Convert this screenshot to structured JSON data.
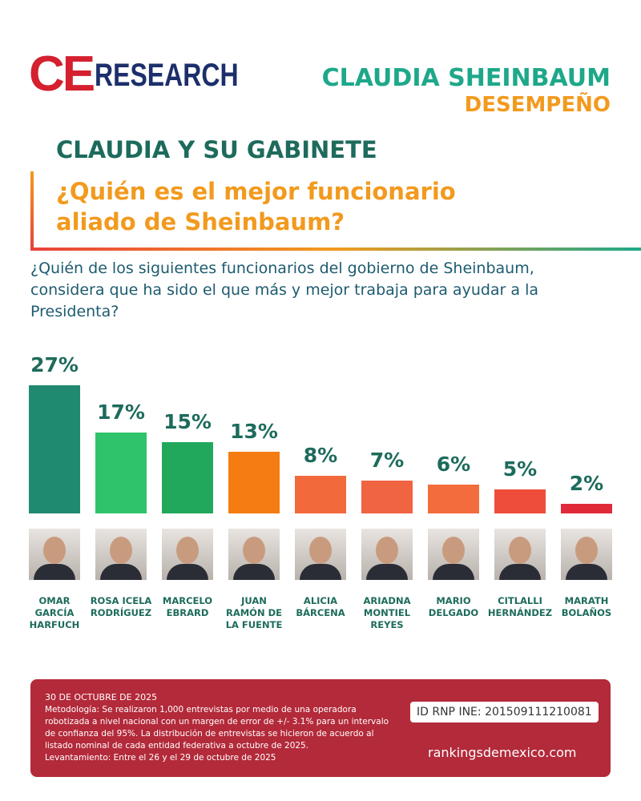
{
  "header": {
    "logo_ce": "CE",
    "logo_research": "RESEARCH",
    "title": "CLAUDIA SHEINBAUM",
    "subtitle": "DESEMPEÑO"
  },
  "section_title": "CLAUDIA Y SU GABINETE",
  "headline": "¿Quién es el mejor funcionario aliado de Sheinbaum?",
  "question": "¿Quién de los siguientes funcionarios del gobierno de Sheinbaum, considera que ha sido el que más y mejor trabaja para ayudar a la Presidenta?",
  "chart_data": {
    "type": "bar",
    "categories": [
      "OMAR GARCÍA HARFUCH",
      "ROSA ICELA RODRÍGUEZ",
      "MARCELO EBRARD",
      "JUAN RAMÓN DE LA FUENTE",
      "ALICIA BÁRCENA",
      "ARIADNA MONTIEL REYES",
      "MARIO DELGADO",
      "CITLALLI HERNÁNDEZ",
      "MARATH BOLAÑOS"
    ],
    "values": [
      27,
      17,
      15,
      13,
      8,
      7,
      6,
      5,
      2
    ],
    "value_labels": [
      "27%",
      "17%",
      "15%",
      "13%",
      "8%",
      "7%",
      "6%",
      "5%",
      "2%"
    ],
    "colors": [
      "#1f8a70",
      "#2fc46b",
      "#22a85c",
      "#f57c12",
      "#f26a3c",
      "#f06441",
      "#f26c3e",
      "#ee4d3b",
      "#e02a3a"
    ]
  },
  "footer": {
    "date": "30 DE OCTUBRE DE 2025",
    "methodology": "Metodología: Se realizaron 1,000 entrevistas por medio de una operadora robotizada a nivel nacional con un margen de error de +/- 3.1% para un intervalo de confianza del 95%. La distribución de entrevistas se hicieron de acuerdo al listado nominal de cada entidad federativa a octubre de 2025.",
    "fieldwork": "Levantamiento: Entre el 26 y el 29 de octubre de 2025",
    "id": "ID RNP INE: 201509111210081",
    "website": "rankingsdemexico.com"
  }
}
